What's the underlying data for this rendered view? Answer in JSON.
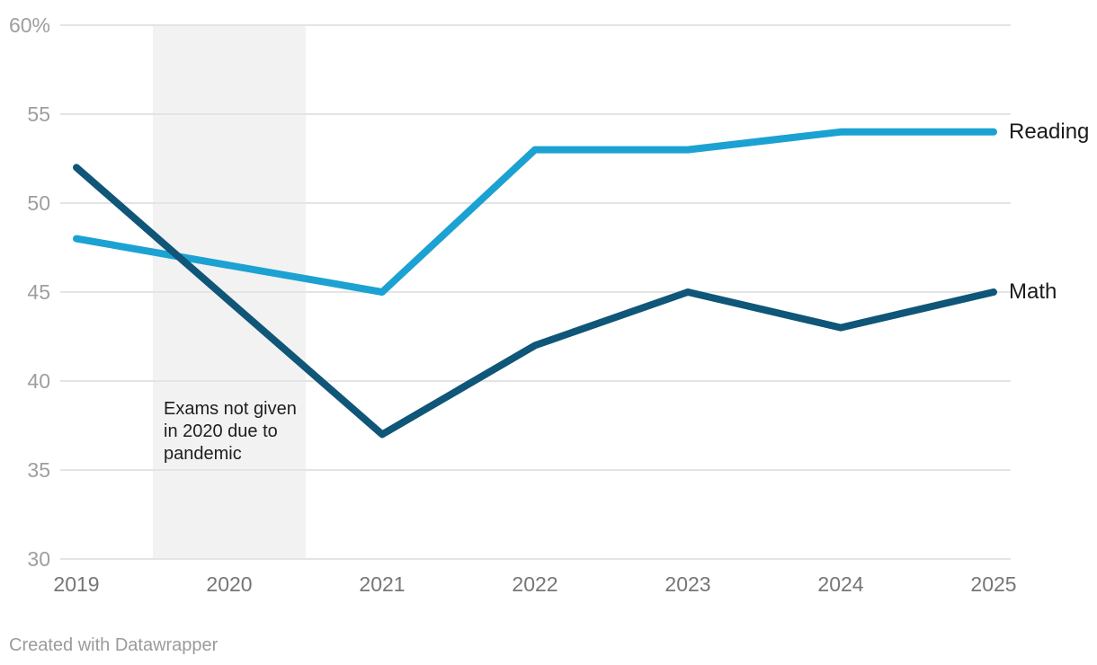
{
  "chart_data": {
    "type": "line",
    "x": [
      2019,
      2021,
      2022,
      2023,
      2024,
      2025
    ],
    "series": [
      {
        "name": "Reading",
        "color": "#1ca2d2",
        "values": [
          48,
          45,
          53,
          53,
          54,
          54
        ]
      },
      {
        "name": "Math",
        "color": "#0f5678",
        "values": [
          52,
          37,
          42,
          45,
          43,
          45
        ]
      }
    ],
    "xlim": [
      2019,
      2025
    ],
    "ylim": [
      30,
      60
    ],
    "xticks": [
      2019,
      2020,
      2021,
      2022,
      2023,
      2024,
      2025
    ],
    "yticks": [
      30,
      35,
      40,
      45,
      50,
      55,
      60
    ],
    "ytick_labels": [
      "30",
      "35",
      "40",
      "45",
      "50",
      "55",
      "60%"
    ],
    "grid": true,
    "legend_position": "direct-right",
    "band": {
      "from": 2019.5,
      "to": 2020.5,
      "color": "#f2f2f2",
      "label": "Exams not given in 2020 due to pandemic",
      "label_lines": [
        "Exams not given",
        "in 2020 due to",
        "pandemic"
      ]
    }
  },
  "attribution": {
    "text": "Created with Datawrapper"
  },
  "colors": {
    "background": "#ffffff",
    "grid": "#e4e4e4",
    "y_tick": "#9e9e9e",
    "x_tick": "#767676",
    "annotation_text": "#1e1e1e",
    "series_label_text": "#1a1a1a",
    "attribution_text": "#9b9b9b"
  }
}
